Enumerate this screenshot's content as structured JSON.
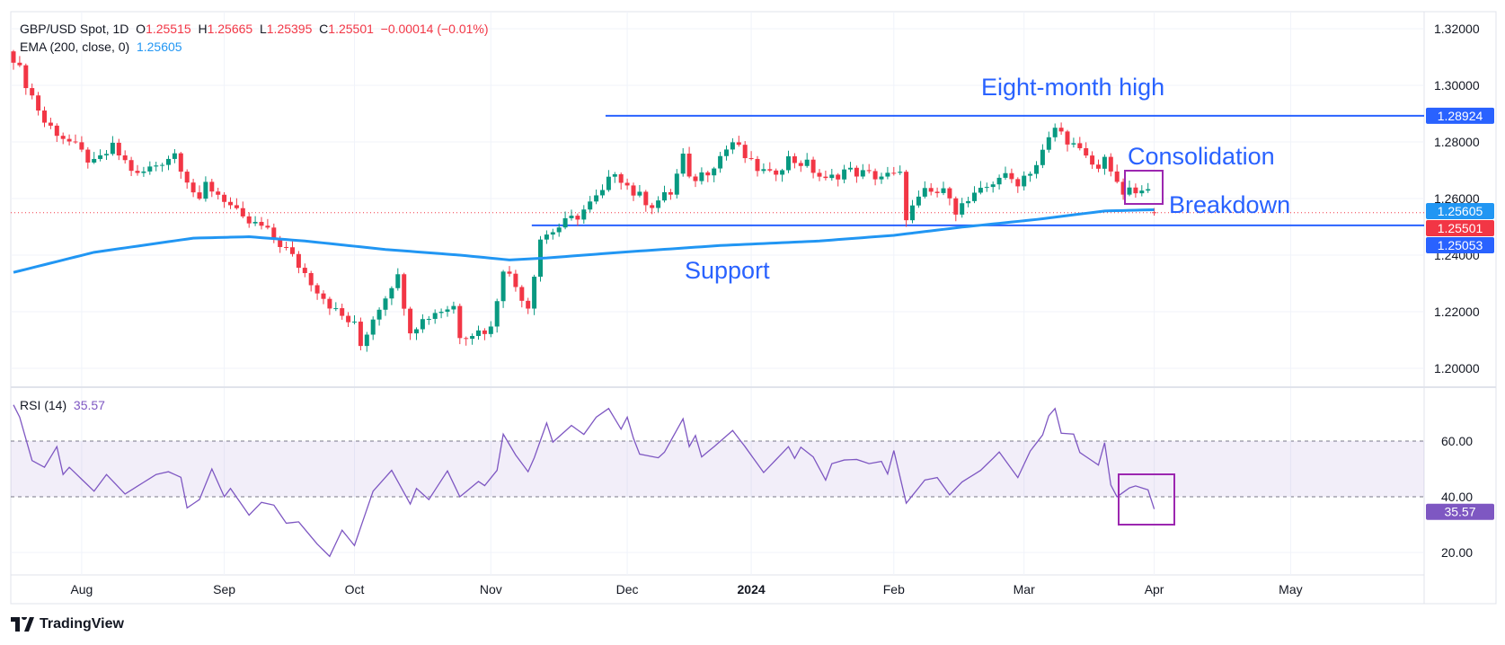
{
  "chart_data": {
    "type": "candlestick",
    "title": "GBP/USD Spot, 1D",
    "ohlc_last": {
      "open_label": "O",
      "open": "1.25515",
      "high_label": "H",
      "high": "1.25665",
      "low_label": "L",
      "low": "1.25395",
      "close_label": "C",
      "close": "1.25501",
      "change": "−0.00014 (−0.01%)"
    },
    "ema": {
      "label": "EMA (200, close, 0)",
      "value": "1.25605"
    },
    "rsi": {
      "label": "RSI (14)",
      "value": "35.57"
    },
    "price_axis": {
      "ticks": [
        "1.32000",
        "1.30000",
        "1.28000",
        "1.26000",
        "1.24000",
        "1.22000",
        "1.20000"
      ],
      "range": [
        1.195,
        1.325
      ]
    },
    "rsi_axis": {
      "ticks": [
        "60.00",
        "40.00",
        "20.00"
      ],
      "band": [
        40,
        60
      ]
    },
    "x_axis": {
      "labels": [
        {
          "text": "Aug",
          "day": 11
        },
        {
          "text": "Sep",
          "day": 34
        },
        {
          "text": "Oct",
          "day": 55
        },
        {
          "text": "Nov",
          "day": 77
        },
        {
          "text": "Dec",
          "day": 99
        },
        {
          "text": "2024",
          "day": 119,
          "bold": true
        },
        {
          "text": "Feb",
          "day": 142
        },
        {
          "text": "Mar",
          "day": 163
        },
        {
          "text": "Apr",
          "day": 184
        },
        {
          "text": "May",
          "day": 206
        }
      ]
    },
    "close_path": [
      [
        0,
        1.31
      ],
      [
        5,
        1.287
      ],
      [
        9,
        1.28
      ],
      [
        13,
        1.272
      ],
      [
        16,
        1.278
      ],
      [
        20,
        1.268
      ],
      [
        26,
        1.276
      ],
      [
        30,
        1.258
      ],
      [
        31,
        1.265
      ],
      [
        34,
        1.26
      ],
      [
        37,
        1.252
      ],
      [
        40,
        1.25
      ],
      [
        44,
        1.242
      ],
      [
        49,
        1.228
      ],
      [
        52,
        1.22
      ],
      [
        55,
        1.215
      ],
      [
        56,
        1.208
      ],
      [
        58,
        1.218
      ],
      [
        61,
        1.23
      ],
      [
        62,
        1.232
      ],
      [
        64,
        1.214
      ],
      [
        68,
        1.22
      ],
      [
        71,
        1.222
      ],
      [
        72,
        1.212
      ],
      [
        75,
        1.213
      ],
      [
        77,
        1.214
      ],
      [
        79,
        1.236
      ],
      [
        83,
        1.222
      ],
      [
        85,
        1.246
      ],
      [
        91,
        1.254
      ],
      [
        95,
        1.262
      ],
      [
        97,
        1.27
      ],
      [
        100,
        1.262
      ],
      [
        103,
        1.258
      ],
      [
        106,
        1.262
      ],
      [
        108,
        1.275
      ],
      [
        109,
        1.266
      ],
      [
        112,
        1.27
      ],
      [
        116,
        1.28
      ],
      [
        119,
        1.272
      ],
      [
        122,
        1.268
      ],
      [
        125,
        1.274
      ],
      [
        128,
        1.272
      ],
      [
        131,
        1.266
      ],
      [
        134,
        1.27
      ],
      [
        139,
        1.268
      ],
      [
        143,
        1.268
      ],
      [
        144,
        1.254
      ],
      [
        147,
        1.262
      ],
      [
        151,
        1.262
      ],
      [
        152,
        1.256
      ],
      [
        156,
        1.262
      ],
      [
        159,
        1.268
      ],
      [
        162,
        1.266
      ],
      [
        165,
        1.272
      ],
      [
        168,
        1.285
      ],
      [
        170,
        1.281
      ],
      [
        173,
        1.274
      ],
      [
        175,
        1.27
      ],
      [
        176,
        1.276
      ],
      [
        178,
        1.264
      ],
      [
        179,
        1.262
      ],
      [
        183,
        1.262
      ],
      [
        184,
        1.25501
      ]
    ],
    "ema_path": [
      [
        0,
        1.2339
      ],
      [
        13,
        1.241
      ],
      [
        29,
        1.246
      ],
      [
        38,
        1.2465
      ],
      [
        47,
        1.245
      ],
      [
        60,
        1.242
      ],
      [
        72,
        1.24
      ],
      [
        80,
        1.2383
      ],
      [
        86,
        1.239
      ],
      [
        98,
        1.241
      ],
      [
        114,
        1.2434
      ],
      [
        130,
        1.245
      ],
      [
        142,
        1.247
      ],
      [
        153,
        1.2499
      ],
      [
        165,
        1.2526
      ],
      [
        176,
        1.2556
      ],
      [
        184,
        1.25605
      ]
    ],
    "rsi_path": [
      [
        0,
        73
      ],
      [
        1,
        68.6
      ],
      [
        3,
        53
      ],
      [
        5,
        50.6
      ],
      [
        7,
        58
      ],
      [
        8,
        48
      ],
      [
        9,
        50.6
      ],
      [
        13,
        42
      ],
      [
        15,
        48
      ],
      [
        18,
        41
      ],
      [
        23,
        48
      ],
      [
        25,
        49
      ],
      [
        27,
        47
      ],
      [
        28,
        36
      ],
      [
        30,
        39
      ],
      [
        32,
        50
      ],
      [
        34,
        40
      ],
      [
        35,
        43
      ],
      [
        38,
        33.4
      ],
      [
        40,
        38
      ],
      [
        42,
        37
      ],
      [
        44,
        30.5
      ],
      [
        46,
        31
      ],
      [
        49,
        23
      ],
      [
        51,
        18.6
      ],
      [
        53,
        28
      ],
      [
        55,
        22.5
      ],
      [
        58,
        42
      ],
      [
        61,
        49.5
      ],
      [
        64,
        37.4
      ],
      [
        65,
        43
      ],
      [
        67,
        39
      ],
      [
        70,
        49.3
      ],
      [
        72,
        40
      ],
      [
        75,
        45.5
      ],
      [
        76,
        44
      ],
      [
        78,
        49.5
      ],
      [
        79,
        62.5
      ],
      [
        81,
        55
      ],
      [
        83,
        49
      ],
      [
        84,
        54
      ],
      [
        86,
        66.5
      ],
      [
        87,
        59.6
      ],
      [
        90,
        65.6
      ],
      [
        92,
        62.4
      ],
      [
        94,
        68.6
      ],
      [
        96,
        71.7
      ],
      [
        98,
        64.3
      ],
      [
        99,
        68.6
      ],
      [
        100,
        61
      ],
      [
        101,
        55.3
      ],
      [
        104,
        54
      ],
      [
        105,
        56
      ],
      [
        108,
        68
      ],
      [
        109,
        58
      ],
      [
        110,
        62
      ],
      [
        111,
        54.3
      ],
      [
        113,
        58
      ],
      [
        116,
        63.8
      ],
      [
        118,
        58
      ],
      [
        121,
        48.7
      ],
      [
        125,
        58
      ],
      [
        126,
        53.8
      ],
      [
        127,
        57.8
      ],
      [
        129,
        54.3
      ],
      [
        131,
        46
      ],
      [
        132,
        51.9
      ],
      [
        134,
        53.2
      ],
      [
        136,
        53.4
      ],
      [
        138,
        51.9
      ],
      [
        140,
        52.7
      ],
      [
        141,
        48.2
      ],
      [
        142,
        56.6
      ],
      [
        144,
        37.7
      ],
      [
        147,
        46
      ],
      [
        149,
        46.9
      ],
      [
        151,
        40.7
      ],
      [
        153,
        45.3
      ],
      [
        156,
        49.5
      ],
      [
        158,
        53.8
      ],
      [
        159,
        56.1
      ],
      [
        162,
        46.9
      ],
      [
        164,
        56.4
      ],
      [
        166,
        62.2
      ],
      [
        167,
        69.1
      ],
      [
        168,
        71.7
      ],
      [
        169,
        62.8
      ],
      [
        171,
        62.5
      ],
      [
        172,
        55.9
      ],
      [
        175,
        51.4
      ],
      [
        176,
        59.4
      ],
      [
        177,
        44.2
      ],
      [
        178,
        40
      ],
      [
        180,
        43.2
      ],
      [
        181,
        43.9
      ],
      [
        183,
        42.5
      ],
      [
        184,
        35.57
      ]
    ],
    "levels": [
      {
        "name": "resistance",
        "value": 1.28924,
        "label": "1.28924",
        "from_day": 95.5
      },
      {
        "name": "support",
        "value": 1.25053,
        "label": "1.25053",
        "from_day": 83.6
      }
    ],
    "badges": {
      "ema": "1.25605",
      "last": "1.25501"
    },
    "annotations": {
      "high": "Eight-month high",
      "consolidation": "Consolidation",
      "breakdown": "Breakdown",
      "support": "Support"
    },
    "colors": {
      "up": "#089981",
      "down": "#f23645",
      "ema": "#2196f3",
      "level": "#2962ff",
      "rsi": "#7e57c2",
      "box": "#9c27b0"
    }
  },
  "footer": {
    "brand": "TradingView"
  }
}
